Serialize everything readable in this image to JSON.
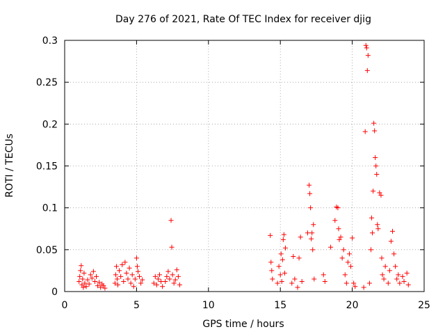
{
  "chart_data": {
    "type": "scatter",
    "title": "Day 276 of 2021, Rate Of TEC Index for receiver djig",
    "xlabel": "GPS time / hours",
    "ylabel": "ROTI / TECUs",
    "xlim": [
      0,
      25
    ],
    "ylim": [
      0,
      0.3
    ],
    "x_ticks": [
      0,
      5,
      10,
      15,
      20,
      25
    ],
    "x_tick_labels": [
      "0",
      "5",
      "10",
      "15",
      "20",
      "25"
    ],
    "y_ticks": [
      0,
      0.05,
      0.1,
      0.15,
      0.2,
      0.25,
      0.3
    ],
    "y_tick_labels": [
      "0",
      "0.05",
      "0.1",
      "0.15",
      "0.2",
      "0.25",
      "0.3"
    ],
    "grid": true,
    "marker": "+",
    "marker_color": "#ff0000",
    "series": [
      {
        "name": "ROTI",
        "points": [
          [
            1.0,
            0.012
          ],
          [
            1.05,
            0.018
          ],
          [
            1.1,
            0.025
          ],
          [
            1.15,
            0.031
          ],
          [
            1.2,
            0.008
          ],
          [
            1.25,
            0.015
          ],
          [
            1.3,
            0.005
          ],
          [
            1.35,
            0.022
          ],
          [
            1.4,
            0.01
          ],
          [
            1.5,
            0.006
          ],
          [
            1.6,
            0.014
          ],
          [
            1.7,
            0.009
          ],
          [
            1.8,
            0.02
          ],
          [
            1.9,
            0.016
          ],
          [
            2.0,
            0.024
          ],
          [
            2.1,
            0.012
          ],
          [
            2.2,
            0.018
          ],
          [
            2.3,
            0.007
          ],
          [
            2.4,
            0.011
          ],
          [
            2.5,
            0.005
          ],
          [
            2.6,
            0.009
          ],
          [
            2.7,
            0.007
          ],
          [
            2.8,
            0.004
          ],
          [
            3.5,
            0.01
          ],
          [
            3.55,
            0.02
          ],
          [
            3.6,
            0.03
          ],
          [
            3.65,
            0.015
          ],
          [
            3.7,
            0.008
          ],
          [
            3.8,
            0.025
          ],
          [
            3.9,
            0.018
          ],
          [
            4.0,
            0.032
          ],
          [
            4.1,
            0.012
          ],
          [
            4.2,
            0.035
          ],
          [
            4.3,
            0.022
          ],
          [
            4.4,
            0.015
          ],
          [
            4.5,
            0.028
          ],
          [
            4.6,
            0.01
          ],
          [
            4.7,
            0.02
          ],
          [
            4.8,
            0.006
          ],
          [
            4.9,
            0.015
          ],
          [
            5.0,
            0.04
          ],
          [
            5.05,
            0.03
          ],
          [
            5.1,
            0.024
          ],
          [
            5.2,
            0.018
          ],
          [
            5.3,
            0.01
          ],
          [
            5.4,
            0.014
          ],
          [
            6.2,
            0.01
          ],
          [
            6.3,
            0.018
          ],
          [
            6.4,
            0.008
          ],
          [
            6.5,
            0.015
          ],
          [
            6.6,
            0.02
          ],
          [
            6.7,
            0.012
          ],
          [
            6.8,
            0.006
          ],
          [
            7.0,
            0.012
          ],
          [
            7.1,
            0.018
          ],
          [
            7.2,
            0.024
          ],
          [
            7.3,
            0.015
          ],
          [
            7.4,
            0.085
          ],
          [
            7.45,
            0.053
          ],
          [
            7.5,
            0.02
          ],
          [
            7.6,
            0.01
          ],
          [
            7.7,
            0.014
          ],
          [
            7.8,
            0.026
          ],
          [
            7.9,
            0.018
          ],
          [
            8.0,
            0.008
          ],
          [
            14.3,
            0.067
          ],
          [
            14.35,
            0.035
          ],
          [
            14.4,
            0.025
          ],
          [
            14.45,
            0.015
          ],
          [
            14.8,
            0.01
          ],
          [
            14.9,
            0.03
          ],
          [
            15.0,
            0.02
          ],
          [
            15.05,
            0.045
          ],
          [
            15.1,
            0.012
          ],
          [
            15.15,
            0.038
          ],
          [
            15.2,
            0.062
          ],
          [
            15.25,
            0.068
          ],
          [
            15.3,
            0.022
          ],
          [
            15.35,
            0.052
          ],
          [
            15.8,
            0.01
          ],
          [
            15.9,
            0.042
          ],
          [
            16.0,
            0.015
          ],
          [
            16.2,
            0.005
          ],
          [
            16.3,
            0.04
          ],
          [
            16.4,
            0.065
          ],
          [
            16.5,
            0.012
          ],
          [
            16.9,
            0.07
          ],
          [
            17.0,
            0.127
          ],
          [
            17.05,
            0.117
          ],
          [
            17.1,
            0.1
          ],
          [
            17.15,
            0.063
          ],
          [
            17.2,
            0.07
          ],
          [
            17.25,
            0.05
          ],
          [
            17.3,
            0.08
          ],
          [
            17.35,
            0.015
          ],
          [
            18.0,
            0.02
          ],
          [
            18.1,
            0.012
          ],
          [
            18.5,
            0.053
          ],
          [
            18.8,
            0.085
          ],
          [
            18.9,
            0.101
          ],
          [
            19.0,
            0.1
          ],
          [
            19.05,
            0.075
          ],
          [
            19.1,
            0.062
          ],
          [
            19.2,
            0.065
          ],
          [
            19.3,
            0.04
          ],
          [
            19.4,
            0.05
          ],
          [
            19.5,
            0.02
          ],
          [
            19.6,
            0.01
          ],
          [
            19.7,
            0.035
          ],
          [
            19.8,
            0.045
          ],
          [
            19.9,
            0.03
          ],
          [
            20.0,
            0.064
          ],
          [
            20.1,
            0.01
          ],
          [
            20.2,
            0.006
          ],
          [
            20.8,
            0.005
          ],
          [
            20.9,
            0.191
          ],
          [
            20.95,
            0.294
          ],
          [
            21.0,
            0.291
          ],
          [
            21.05,
            0.264
          ],
          [
            21.1,
            0.282
          ],
          [
            21.2,
            0.01
          ],
          [
            21.3,
            0.05
          ],
          [
            21.35,
            0.088
          ],
          [
            21.4,
            0.07
          ],
          [
            21.45,
            0.12
          ],
          [
            21.5,
            0.201
          ],
          [
            21.55,
            0.192
          ],
          [
            21.6,
            0.16
          ],
          [
            21.65,
            0.15
          ],
          [
            21.7,
            0.14
          ],
          [
            21.75,
            0.08
          ],
          [
            21.8,
            0.075
          ],
          [
            21.9,
            0.118
          ],
          [
            22.0,
            0.115
          ],
          [
            22.05,
            0.04
          ],
          [
            22.1,
            0.02
          ],
          [
            22.2,
            0.015
          ],
          [
            22.3,
            0.03
          ],
          [
            22.5,
            0.01
          ],
          [
            22.6,
            0.025
          ],
          [
            22.7,
            0.06
          ],
          [
            22.8,
            0.072
          ],
          [
            22.9,
            0.045
          ],
          [
            23.0,
            0.03
          ],
          [
            23.1,
            0.015
          ],
          [
            23.2,
            0.02
          ],
          [
            23.3,
            0.01
          ],
          [
            23.5,
            0.018
          ],
          [
            23.6,
            0.012
          ],
          [
            23.8,
            0.022
          ],
          [
            23.9,
            0.008
          ]
        ]
      }
    ]
  }
}
